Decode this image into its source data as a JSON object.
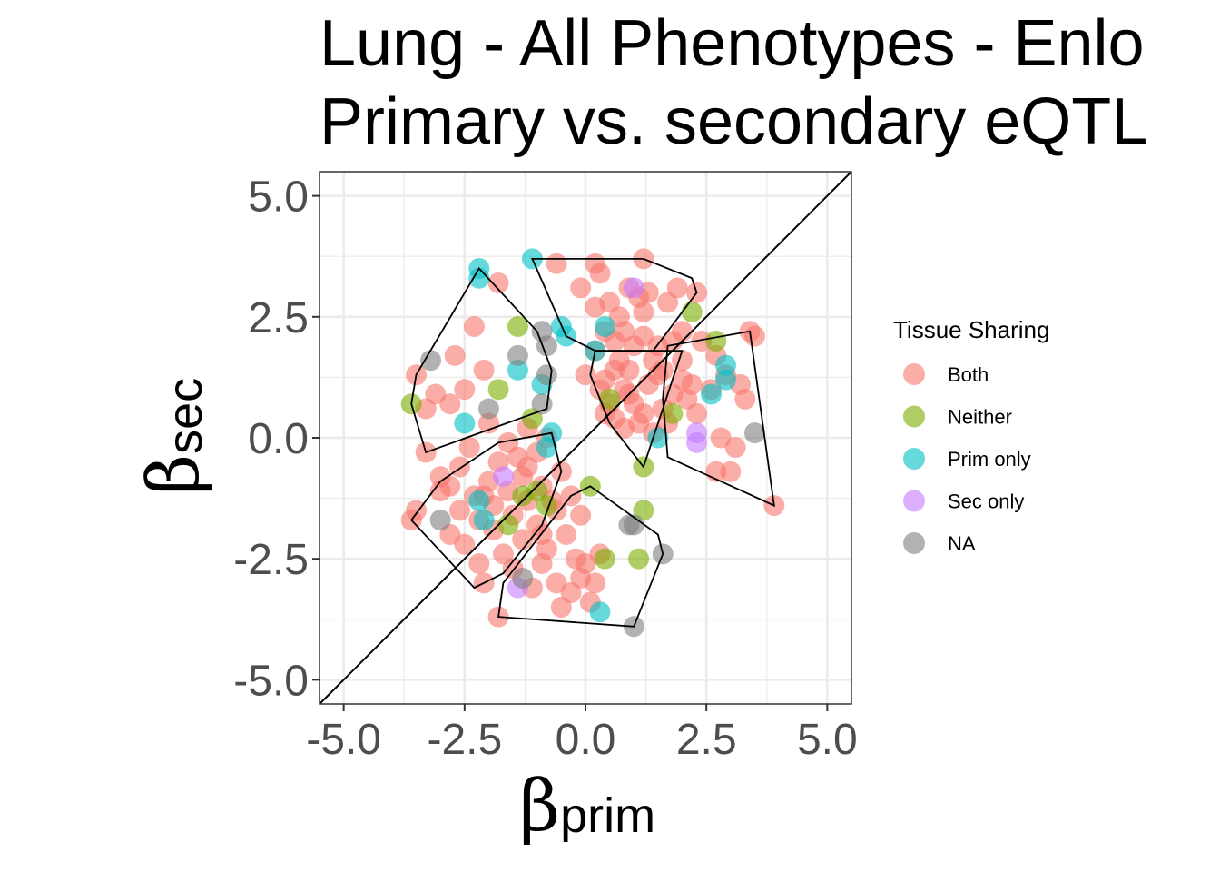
{
  "chart_data": {
    "type": "scatter",
    "title": [
      "Lung - All Phenotypes - Enlo",
      "Primary vs. secondary eQTL"
    ],
    "xlabel": {
      "symbol": "β",
      "subscript": "prim"
    },
    "ylabel": {
      "symbol": "β",
      "subscript": "sec"
    },
    "xlim": [
      -5.5,
      5.5
    ],
    "ylim": [
      -5.5,
      5.5
    ],
    "x_ticks": [
      -5.0,
      -2.5,
      0.0,
      2.5,
      5.0
    ],
    "y_ticks": [
      -5.0,
      -2.5,
      0.0,
      2.5,
      5.0
    ],
    "x_tick_labels": [
      "-5.0",
      "-2.5",
      "0.0",
      "2.5",
      "5.0"
    ],
    "y_tick_labels": [
      "-5.0",
      "-2.5",
      "0.0",
      "2.5",
      "5.0"
    ],
    "grid": true,
    "diagonal_reference": true,
    "legend": {
      "title": "Tissue Sharing",
      "position": "right",
      "entries": [
        {
          "name": "Both",
          "color": "#F8766D"
        },
        {
          "name": "Neither",
          "color": "#7CAE00"
        },
        {
          "name": "Prim only",
          "color": "#00BFC4"
        },
        {
          "name": "Sec only",
          "color": "#C77CFF"
        },
        {
          "name": "NA",
          "color": "#7F7F7F"
        }
      ]
    },
    "series": [
      {
        "name": "Both",
        "color": "#F8766D",
        "points": [
          [
            1.2,
            3.7
          ],
          [
            0.2,
            3.6
          ],
          [
            -0.6,
            3.6
          ],
          [
            0.3,
            3.4
          ],
          [
            -1.8,
            3.2
          ],
          [
            0.9,
            3.1
          ],
          [
            1.3,
            3.0
          ],
          [
            1.9,
            3.1
          ],
          [
            2.3,
            3.0
          ],
          [
            -0.1,
            3.1
          ],
          [
            0.5,
            2.8
          ],
          [
            0.2,
            2.7
          ],
          [
            1.1,
            2.9
          ],
          [
            1.7,
            2.8
          ],
          [
            0.7,
            2.5
          ],
          [
            1.2,
            2.6
          ],
          [
            -2.3,
            2.3
          ],
          [
            0.4,
            2.2
          ],
          [
            0.8,
            2.2
          ],
          [
            2.0,
            2.2
          ],
          [
            3.4,
            2.2
          ],
          [
            0.6,
            2.0
          ],
          [
            1.0,
            1.9
          ],
          [
            1.5,
            1.9
          ],
          [
            1.8,
            2.0
          ],
          [
            2.4,
            2.0
          ],
          [
            3.5,
            2.1
          ],
          [
            -2.7,
            1.7
          ],
          [
            0.2,
            1.8
          ],
          [
            0.7,
            1.6
          ],
          [
            1.4,
            1.6
          ],
          [
            2.0,
            1.6
          ],
          [
            2.7,
            1.7
          ],
          [
            -2.1,
            1.4
          ],
          [
            0.0,
            1.3
          ],
          [
            0.4,
            1.2
          ],
          [
            0.9,
            1.4
          ],
          [
            1.5,
            1.3
          ],
          [
            2.0,
            1.2
          ],
          [
            2.9,
            1.3
          ],
          [
            -3.5,
            1.3
          ],
          [
            -2.5,
            1.0
          ],
          [
            0.3,
            1.0
          ],
          [
            0.8,
            1.0
          ],
          [
            1.3,
            1.1
          ],
          [
            1.8,
            0.9
          ],
          [
            2.6,
            1.0
          ],
          [
            3.2,
            1.1
          ],
          [
            -3.1,
            0.9
          ],
          [
            -2.8,
            0.7
          ],
          [
            0.5,
            0.7
          ],
          [
            1.0,
            0.7
          ],
          [
            1.6,
            0.6
          ],
          [
            2.1,
            0.8
          ],
          [
            3.3,
            0.8
          ],
          [
            -3.3,
            0.6
          ],
          [
            0.6,
            0.4
          ],
          [
            1.2,
            0.5
          ],
          [
            1.7,
            0.3
          ],
          [
            2.3,
            0.5
          ],
          [
            -2.0,
            0.3
          ],
          [
            -1.2,
            0.2
          ],
          [
            0.8,
            0.2
          ],
          [
            1.4,
            0.1
          ],
          [
            2.8,
            0.0
          ],
          [
            -0.8,
            0.0
          ],
          [
            -1.6,
            -0.1
          ],
          [
            -2.4,
            -0.2
          ],
          [
            -3.3,
            -0.3
          ],
          [
            3.1,
            -0.2
          ],
          [
            -1.0,
            -0.3
          ],
          [
            -1.8,
            -0.5
          ],
          [
            -2.6,
            -0.6
          ],
          [
            -3.0,
            -0.8
          ],
          [
            2.7,
            -0.7
          ],
          [
            3.0,
            -0.7
          ],
          [
            -0.5,
            -0.7
          ],
          [
            -1.3,
            -0.8
          ],
          [
            -2.0,
            -0.9
          ],
          [
            -2.8,
            -1.0
          ],
          [
            -0.9,
            -1.0
          ],
          [
            -1.6,
            -1.1
          ],
          [
            -2.3,
            -1.2
          ],
          [
            -3.0,
            -1.1
          ],
          [
            -0.3,
            -1.2
          ],
          [
            -1.2,
            -1.3
          ],
          [
            -1.9,
            -1.4
          ],
          [
            -2.6,
            -1.5
          ],
          [
            -3.5,
            -1.5
          ],
          [
            -0.6,
            -1.5
          ],
          [
            -1.5,
            -1.6
          ],
          [
            -2.2,
            -1.7
          ],
          [
            -0.1,
            -1.6
          ],
          [
            -1.0,
            -1.8
          ],
          [
            -1.9,
            -1.9
          ],
          [
            -2.8,
            -2.0
          ],
          [
            -3.6,
            -1.7
          ],
          [
            -0.4,
            -2.0
          ],
          [
            -1.3,
            -2.1
          ],
          [
            -2.5,
            -2.2
          ],
          [
            -0.8,
            -2.3
          ],
          [
            -1.7,
            -2.4
          ],
          [
            -0.2,
            -2.5
          ],
          [
            0.3,
            -2.4
          ],
          [
            -0.9,
            -2.6
          ],
          [
            -1.5,
            -2.7
          ],
          [
            -2.2,
            -2.6
          ],
          [
            -0.1,
            -2.9
          ],
          [
            -0.6,
            -3.0
          ],
          [
            0.2,
            -3.0
          ],
          [
            -1.1,
            -3.1
          ],
          [
            -2.1,
            -3.0
          ],
          [
            -0.3,
            -3.2
          ],
          [
            -0.5,
            -3.5
          ],
          [
            -1.8,
            -3.7
          ],
          [
            0.1,
            -3.4
          ],
          [
            0.0,
            -2.6
          ],
          [
            -0.9,
            -2.0
          ],
          [
            3.9,
            -1.4
          ],
          [
            -1.2,
            -0.6
          ],
          [
            -0.7,
            -1.3
          ],
          [
            -2.1,
            -1.2
          ],
          [
            -1.4,
            -0.4
          ],
          [
            0.9,
            0.9
          ],
          [
            1.1,
            0.3
          ],
          [
            0.4,
            0.5
          ],
          [
            1.6,
            1.4
          ],
          [
            2.2,
            1.1
          ],
          [
            0.6,
            1.4
          ],
          [
            1.2,
            2.1
          ]
        ]
      },
      {
        "name": "Neither",
        "color": "#7CAE00",
        "points": [
          [
            -1.4,
            2.3
          ],
          [
            2.2,
            2.6
          ],
          [
            2.7,
            2.0
          ],
          [
            -3.6,
            0.7
          ],
          [
            -1.8,
            1.0
          ],
          [
            -1.1,
            0.4
          ],
          [
            1.2,
            -0.6
          ],
          [
            0.1,
            -1.0
          ],
          [
            -1.0,
            -1.1
          ],
          [
            -0.8,
            -1.4
          ],
          [
            1.2,
            -1.5
          ],
          [
            -1.6,
            -1.8
          ],
          [
            0.4,
            -2.5
          ],
          [
            1.1,
            -2.5
          ],
          [
            -1.3,
            -1.2
          ],
          [
            0.5,
            0.8
          ],
          [
            1.8,
            0.5
          ]
        ]
      },
      {
        "name": "Prim only",
        "color": "#00BFC4",
        "points": [
          [
            -2.2,
            3.5
          ],
          [
            -1.1,
            3.7
          ],
          [
            -2.2,
            3.3
          ],
          [
            -0.5,
            2.3
          ],
          [
            -0.4,
            2.1
          ],
          [
            0.4,
            2.3
          ],
          [
            0.2,
            1.8
          ],
          [
            -1.4,
            1.4
          ],
          [
            2.9,
            1.5
          ],
          [
            2.9,
            1.2
          ],
          [
            -0.9,
            1.1
          ],
          [
            2.6,
            0.9
          ],
          [
            -2.5,
            0.3
          ],
          [
            -0.7,
            0.1
          ],
          [
            -2.2,
            -1.3
          ],
          [
            -2.1,
            -1.7
          ],
          [
            0.3,
            -3.6
          ],
          [
            1.5,
            0.0
          ],
          [
            -0.8,
            -0.2
          ]
        ]
      },
      {
        "name": "Sec only",
        "color": "#C77CFF",
        "points": [
          [
            1.0,
            3.1
          ],
          [
            2.3,
            0.1
          ],
          [
            2.3,
            -0.1
          ],
          [
            -1.7,
            -0.8
          ],
          [
            -1.4,
            -3.1
          ]
        ]
      },
      {
        "name": "NA",
        "color": "#7F7F7F",
        "points": [
          [
            -3.2,
            1.6
          ],
          [
            -0.9,
            2.2
          ],
          [
            -0.8,
            1.9
          ],
          [
            -1.4,
            1.7
          ],
          [
            -0.8,
            1.3
          ],
          [
            -0.9,
            0.7
          ],
          [
            -2.0,
            0.6
          ],
          [
            3.5,
            0.1
          ],
          [
            -3.0,
            -1.7
          ],
          [
            0.9,
            -1.8
          ],
          [
            1.0,
            -1.8
          ],
          [
            1.6,
            -2.4
          ],
          [
            -1.3,
            -2.9
          ],
          [
            1.0,
            -3.9
          ]
        ]
      }
    ],
    "hulls": [
      [
        [
          -2.2,
          3.5
        ],
        [
          -1.0,
          2.2
        ],
        [
          -0.7,
          1.4
        ],
        [
          -0.8,
          0.6
        ],
        [
          -3.3,
          -0.3
        ],
        [
          -3.6,
          0.7
        ],
        [
          -3.5,
          1.3
        ]
      ],
      [
        [
          -1.1,
          3.7
        ],
        [
          1.2,
          3.7
        ],
        [
          2.2,
          3.3
        ],
        [
          2.3,
          3.0
        ],
        [
          1.4,
          1.8
        ],
        [
          0.2,
          1.8
        ],
        [
          -0.4,
          2.1
        ]
      ],
      [
        [
          1.7,
          1.9
        ],
        [
          3.4,
          2.2
        ],
        [
          3.9,
          -1.4
        ],
        [
          1.7,
          -0.4
        ],
        [
          1.6,
          0.8
        ]
      ],
      [
        [
          0.2,
          1.8
        ],
        [
          1.4,
          1.8
        ],
        [
          2.0,
          1.8
        ],
        [
          1.2,
          -0.6
        ],
        [
          0.5,
          0.3
        ],
        [
          0.1,
          1.3
        ]
      ],
      [
        [
          -0.7,
          0.1
        ],
        [
          -0.5,
          -0.7
        ],
        [
          -0.9,
          -1.8
        ],
        [
          -1.7,
          -2.8
        ],
        [
          -2.3,
          -3.1
        ],
        [
          -3.6,
          -1.7
        ],
        [
          -3.0,
          -0.9
        ],
        [
          -1.8,
          -0.1
        ]
      ],
      [
        [
          0.1,
          -1.0
        ],
        [
          1.5,
          -2.0
        ],
        [
          1.6,
          -2.4
        ],
        [
          1.0,
          -3.9
        ],
        [
          -1.8,
          -3.7
        ],
        [
          -1.7,
          -3.0
        ],
        [
          -0.3,
          -1.2
        ]
      ]
    ]
  }
}
